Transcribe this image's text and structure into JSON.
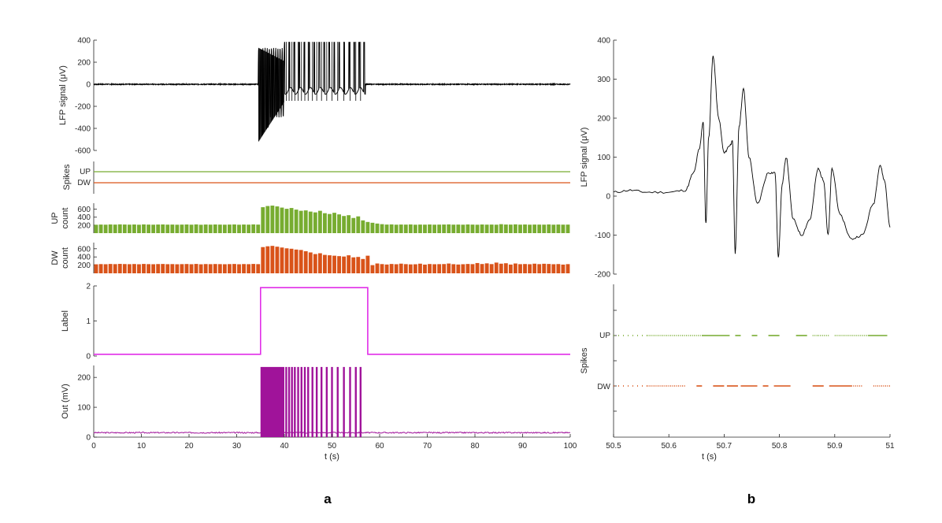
{
  "colors": {
    "lfp": "#000000",
    "up": "#77ac30",
    "dw": "#d95319",
    "label": "#e12ee8",
    "out": "#a0139a",
    "axis": "#262626"
  },
  "panel_labels": {
    "a": "a",
    "b": "b"
  },
  "chart_data": [
    {
      "id": "a-lfp",
      "type": "line",
      "panel": "a",
      "xlabel": "",
      "ylabel": "LFP signal (μV)",
      "xlim": [
        0,
        100
      ],
      "ylim": [
        -600,
        400
      ],
      "yticks": [
        400,
        200,
        0,
        -200,
        -400,
        -600
      ],
      "series": [
        {
          "values_note": "",
          "x": [
            0,
            10,
            20,
            30,
            34.5,
            35,
            36,
            38,
            40,
            42,
            44,
            46,
            48,
            50,
            52,
            54,
            56,
            57,
            58,
            60,
            70,
            80,
            90,
            100
          ],
          "y": [
            0,
            0,
            0,
            0,
            0,
            -530,
            330,
            -420,
            360,
            -300,
            380,
            -200,
            380,
            -150,
            380,
            -150,
            380,
            0,
            0,
            0,
            0,
            0,
            0,
            0
          ]
        }
      ]
    },
    {
      "id": "a-spikes",
      "type": "line",
      "panel": "a",
      "ylabel": "Spikes",
      "yticklabels": [
        "UP",
        "DW"
      ]
    },
    {
      "id": "a-up-count",
      "type": "bar",
      "panel": "a",
      "ylabel": "UP count",
      "xlim": [
        0,
        100
      ],
      "ylim": [
        0,
        750
      ],
      "yticks": [
        200,
        400,
        600
      ],
      "values": [
        210,
        215,
        212,
        218,
        214,
        220,
        216,
        213,
        217,
        211,
        219,
        214,
        212,
        216,
        218,
        213,
        215,
        211,
        214,
        217,
        212,
        219,
        210,
        216,
        213,
        217,
        214,
        212,
        215,
        218,
        211,
        216,
        213,
        219,
        214,
        650,
        680,
        690,
        670,
        640,
        610,
        630,
        590,
        560,
        570,
        540,
        520,
        560,
        500,
        480,
        510,
        470,
        430,
        450,
        380,
        420,
        320,
        280,
        260,
        240,
        225,
        215,
        219,
        212,
        216,
        214,
        218,
        211,
        215,
        213,
        217,
        212,
        214,
        216,
        219,
        213,
        215,
        212,
        218,
        214,
        211,
        217,
        213,
        215,
        212,
        225,
        216,
        214,
        220,
        213,
        217,
        212,
        215,
        214,
        213,
        218,
        212,
        216,
        213,
        214
      ]
    },
    {
      "id": "a-dw-count",
      "type": "bar",
      "panel": "a",
      "ylabel": "DW count",
      "xlim": [
        0,
        100
      ],
      "ylim": [
        0,
        750
      ],
      "yticks": [
        200,
        400,
        600
      ],
      "values": [
        220,
        225,
        222,
        228,
        224,
        230,
        226,
        223,
        227,
        221,
        229,
        224,
        222,
        226,
        228,
        223,
        225,
        221,
        224,
        227,
        222,
        229,
        220,
        226,
        223,
        227,
        224,
        222,
        225,
        228,
        221,
        226,
        223,
        229,
        224,
        640,
        660,
        670,
        650,
        630,
        610,
        600,
        580,
        570,
        540,
        510,
        470,
        490,
        450,
        440,
        430,
        420,
        410,
        440,
        390,
        400,
        350,
        430,
        200,
        240,
        225,
        215,
        228,
        222,
        236,
        224,
        218,
        221,
        235,
        213,
        227,
        222,
        224,
        226,
        239,
        223,
        215,
        222,
        228,
        224,
        251,
        227,
        243,
        225,
        262,
        235,
        246,
        214,
        240,
        223,
        227,
        222,
        235,
        224,
        233,
        228,
        222,
        226,
        213,
        224
      ]
    },
    {
      "id": "a-label",
      "type": "line",
      "panel": "a",
      "ylabel": "Label",
      "xlim": [
        0,
        100
      ],
      "ylim": [
        0,
        2
      ],
      "yticks": [
        2,
        1,
        0
      ],
      "x": [
        0,
        35,
        35,
        57.5,
        57.5,
        100
      ],
      "y": [
        0.05,
        0.05,
        1.95,
        1.95,
        0.05,
        0.05
      ]
    },
    {
      "id": "a-out",
      "type": "line",
      "panel": "a",
      "xlabel": "t (s)",
      "ylabel": "Out (mV)",
      "xlim": [
        0,
        100
      ],
      "ylim": [
        0,
        240
      ],
      "yticks": [
        200,
        100,
        0
      ],
      "xticks": [
        0,
        10,
        20,
        30,
        40,
        50,
        60,
        70,
        80,
        90,
        100
      ],
      "baseline": 15,
      "burst_start": 35,
      "burst_dense_end": 40,
      "pulses": [
        40.4,
        41.0,
        41.6,
        42.2,
        42.9,
        43.6,
        44.3,
        45.0,
        45.9,
        46.8,
        47.8,
        48.9,
        50.0,
        51.2,
        52.5,
        53.8,
        55.0,
        56.0
      ],
      "peak": 235
    },
    {
      "id": "b-lfp",
      "type": "line",
      "panel": "b",
      "ylabel": "LFP signal (μV)",
      "xlim": [
        50.5,
        51
      ],
      "ylim": [
        -200,
        400
      ],
      "yticks": [
        400,
        300,
        200,
        100,
        0,
        -100,
        -200
      ],
      "x": [
        50.5,
        50.53,
        50.56,
        50.6,
        50.63,
        50.645,
        50.655,
        50.662,
        50.667,
        50.672,
        50.68,
        50.69,
        50.7,
        50.71,
        50.715,
        50.72,
        50.727,
        50.735,
        50.745,
        50.76,
        50.78,
        50.792,
        50.798,
        50.805,
        50.812,
        50.825,
        50.84,
        50.855,
        50.87,
        50.88,
        50.888,
        50.895,
        50.91,
        50.93,
        50.95,
        50.97,
        50.982,
        50.99,
        51.0
      ],
      "y": [
        10,
        15,
        10,
        10,
        15,
        60,
        120,
        190,
        -70,
        150,
        360,
        200,
        110,
        130,
        140,
        -145,
        180,
        275,
        100,
        -20,
        60,
        60,
        -155,
        30,
        100,
        -60,
        -100,
        -60,
        70,
        40,
        -100,
        70,
        -50,
        -110,
        -100,
        -20,
        80,
        40,
        -80
      ]
    },
    {
      "id": "b-spikes",
      "type": "scatter",
      "panel": "b",
      "xlabel": "t (s)",
      "ylabel": "Spikes",
      "xlim": [
        50.5,
        51
      ],
      "xticks": [
        50.5,
        50.6,
        50.7,
        50.8,
        50.9,
        51
      ],
      "yticklabels": [
        "UP",
        "DW"
      ],
      "up_segments": [
        [
          50.5,
          50.56,
          "sparse"
        ],
        [
          50.56,
          50.66,
          "dotted"
        ],
        [
          50.66,
          50.71,
          "solid"
        ],
        [
          50.72,
          50.73,
          "solid"
        ],
        [
          50.75,
          50.76,
          "solid"
        ],
        [
          50.78,
          50.8,
          "solid"
        ],
        [
          50.83,
          50.85,
          "solid"
        ],
        [
          50.86,
          50.87,
          "dotted"
        ],
        [
          50.87,
          50.89,
          "dotted"
        ],
        [
          50.9,
          50.96,
          "dotted"
        ],
        [
          50.96,
          50.995,
          "solid"
        ]
      ],
      "dw_segments": [
        [
          50.5,
          50.56,
          "sparse"
        ],
        [
          50.56,
          50.63,
          "dotted"
        ],
        [
          50.65,
          50.66,
          "solid"
        ],
        [
          50.68,
          50.7,
          "solid"
        ],
        [
          50.705,
          50.725,
          "solid"
        ],
        [
          50.73,
          50.76,
          "solid"
        ],
        [
          50.77,
          50.78,
          "solid"
        ],
        [
          50.79,
          50.82,
          "solid"
        ],
        [
          50.86,
          50.88,
          "solid"
        ],
        [
          50.89,
          50.93,
          "solid"
        ],
        [
          50.93,
          50.95,
          "dotted"
        ],
        [
          50.97,
          51.0,
          "dotted"
        ]
      ]
    }
  ],
  "text": {
    "a_lfp_ylabel": "LFP signal (μV)",
    "a_spikes_ylabel": "Spikes",
    "a_up_ylabel_1": "UP",
    "a_up_ylabel_2": "count",
    "a_dw_ylabel_1": "DW",
    "a_dw_ylabel_2": "count",
    "a_label_ylabel": "Label",
    "a_out_ylabel": "Out (mV)",
    "a_xlabel": "t (s)",
    "b_lfp_ylabel": "LFP signal (μV)",
    "b_spikes_ylabel": "Spikes",
    "b_xlabel": "t (s)",
    "up": "UP",
    "dw": "DW"
  }
}
